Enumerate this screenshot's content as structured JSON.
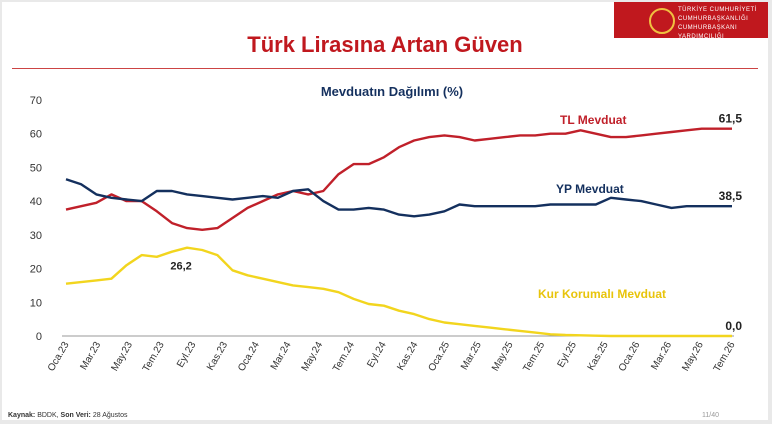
{
  "slide": {
    "title": "Türk Lirasına Artan Güven",
    "logo_line1": "TÜRKİYE CUMHURİYETİ",
    "logo_line2": "CUMHURBAŞKANLIĞI",
    "logo_line3": "CUMHURBAŞKANI YARDIMCILIĞI",
    "source_label": "Kaynak:",
    "source_value": "BDDK,",
    "last_data_label": "Son Veri:",
    "last_data_value": "28 Ağustos",
    "page_number": "11/40"
  },
  "colors": {
    "tl": "#c0202a",
    "yp": "#14305e",
    "kkm": "#f2d51e",
    "accent": "#c0181e"
  },
  "chart_data": {
    "type": "line",
    "title": "Mevduatın Dağılımı (%)",
    "ylim": [
      0,
      70
    ],
    "yticks": [
      0,
      10,
      20,
      30,
      40,
      50,
      60,
      70
    ],
    "x_tick_labels": [
      "Oca.23",
      "Mar.23",
      "May.23",
      "Tem.23",
      "Eyl.23",
      "Kas.23",
      "Oca.24",
      "Mar.24",
      "May.24",
      "Tem.24",
      "Eyl.24",
      "Kas.24",
      "Oca.25",
      "Mar.25",
      "May.25",
      "Tem.25",
      "Eyl.25",
      "Kas.25",
      "Oca.26",
      "Mar.26",
      "May.26",
      "Tem.26"
    ],
    "x_range": [
      0,
      44
    ],
    "grid": false,
    "series": [
      {
        "name": "TL Mevduat",
        "color": "#c0202a",
        "end_label": "61,5",
        "x": [
          0,
          2,
          3,
          4,
          5,
          6,
          7,
          8,
          9,
          10,
          11,
          12,
          13,
          14,
          15,
          16,
          17,
          18,
          19,
          20,
          21,
          22,
          23,
          24,
          25,
          26,
          27,
          28,
          29,
          30,
          31,
          32,
          33,
          34,
          35,
          36,
          37,
          38,
          39,
          40,
          41,
          42,
          43,
          44
        ],
        "y": [
          37.5,
          39.5,
          42,
          40,
          40,
          37,
          33.5,
          32,
          31.5,
          32,
          35,
          38,
          40,
          42,
          43,
          42,
          43,
          48,
          51,
          51,
          53,
          56,
          58,
          59,
          59.5,
          59,
          58,
          58.5,
          59,
          59.5,
          59.5,
          60,
          60,
          61,
          60,
          59,
          59,
          59.5,
          60,
          60.5,
          61,
          61.5,
          61.5,
          61.5
        ]
      },
      {
        "name": "YP Mevduat",
        "color": "#14305e",
        "end_label": "38,5",
        "x": [
          0,
          1,
          2,
          3,
          4,
          5,
          6,
          7,
          8,
          9,
          10,
          11,
          12,
          13,
          14,
          15,
          16,
          17,
          18,
          19,
          20,
          21,
          22,
          23,
          24,
          25,
          26,
          27,
          28,
          29,
          30,
          31,
          32,
          33,
          34,
          35,
          36,
          37,
          38,
          39,
          40,
          41,
          42,
          43,
          44
        ],
        "y": [
          46.5,
          45,
          42,
          41,
          40.5,
          40,
          43,
          43,
          42,
          41.5,
          41,
          40.5,
          41,
          41.5,
          41,
          43,
          43.5,
          40,
          37.5,
          37.5,
          38,
          37.5,
          36,
          35.5,
          36,
          37,
          39,
          38.5,
          38.5,
          38.5,
          38.5,
          38.5,
          39,
          39,
          39,
          39,
          41,
          40.5,
          40,
          39,
          38,
          38.5,
          38.5,
          38.5,
          38.5
        ]
      },
      {
        "name": "Kur Korumalı Mevduat",
        "color": "#f2d51e",
        "end_label": "0,0",
        "x": [
          0,
          2,
          3,
          4,
          5,
          6,
          7,
          8,
          9,
          10,
          11,
          12,
          13,
          14,
          15,
          16,
          17,
          18,
          19,
          20,
          21,
          22,
          23,
          24,
          25,
          26,
          27,
          28,
          29,
          30,
          31,
          32,
          33,
          34,
          35,
          36,
          37,
          38,
          39,
          40,
          41,
          42,
          43,
          44
        ],
        "y": [
          15.5,
          16.5,
          17,
          21,
          24,
          23.5,
          25,
          26.2,
          25.5,
          24,
          19.5,
          18,
          17,
          16,
          15,
          14.5,
          14,
          13,
          11,
          9.5,
          9,
          7.5,
          6.5,
          5,
          4,
          3.5,
          3,
          2.5,
          2,
          1.5,
          1,
          0.5,
          0.3,
          0.2,
          0.1,
          0,
          0,
          0,
          0,
          0,
          0,
          0,
          0,
          0
        ]
      }
    ],
    "annotations": [
      {
        "text": "26,2",
        "series": "Kur Korumalı Mevduat",
        "x": 8,
        "y": 26.2
      }
    ]
  }
}
